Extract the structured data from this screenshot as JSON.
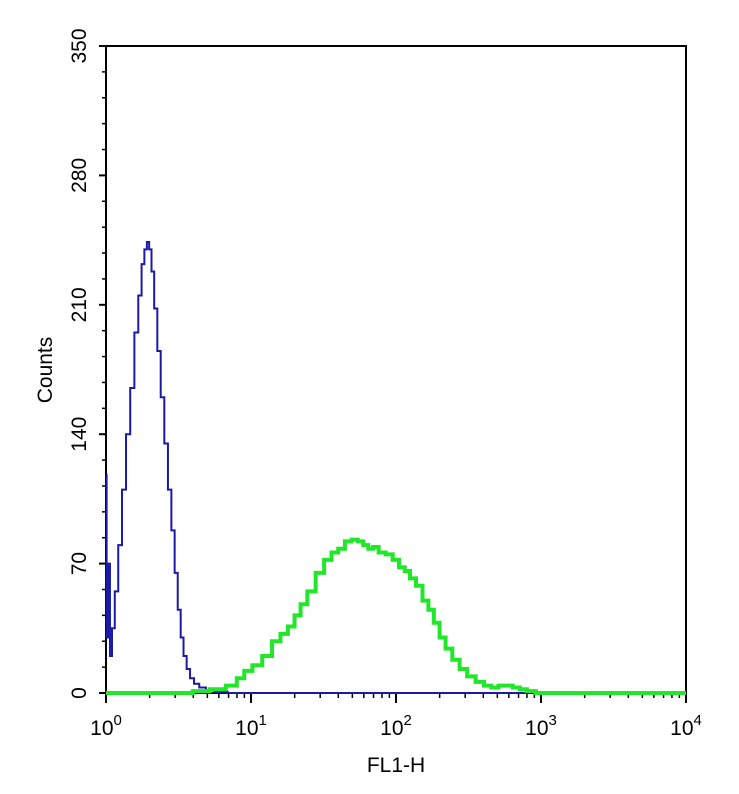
{
  "chart_data": {
    "type": "line",
    "title": "",
    "xlabel": "FL1-H",
    "ylabel": "Counts",
    "x_scale": "log",
    "xlim": [
      1,
      10000
    ],
    "ylim": [
      0,
      350
    ],
    "grid": false,
    "legend": "none",
    "x_ticks": [
      {
        "value": 1,
        "base": "10",
        "exp": "0"
      },
      {
        "value": 10,
        "base": "10",
        "exp": "1"
      },
      {
        "value": 100,
        "base": "10",
        "exp": "2"
      },
      {
        "value": 1000,
        "base": "10",
        "exp": "3"
      },
      {
        "value": 10000,
        "base": "10",
        "exp": "4"
      }
    ],
    "y_ticks": [
      "0",
      "70",
      "140",
      "210",
      "280",
      "350"
    ],
    "series": [
      {
        "color": "#1a1aa6",
        "points": [
          [
            1.0,
            118
          ],
          [
            1.02,
            30
          ],
          [
            1.05,
            70
          ],
          [
            1.08,
            20
          ],
          [
            1.12,
            35
          ],
          [
            1.18,
            55
          ],
          [
            1.25,
            80
          ],
          [
            1.33,
            110
          ],
          [
            1.42,
            140
          ],
          [
            1.52,
            165
          ],
          [
            1.62,
            195
          ],
          [
            1.72,
            215
          ],
          [
            1.8,
            232
          ],
          [
            1.88,
            240
          ],
          [
            1.95,
            244
          ],
          [
            2.02,
            240
          ],
          [
            2.1,
            228
          ],
          [
            2.2,
            208
          ],
          [
            2.32,
            185
          ],
          [
            2.45,
            160
          ],
          [
            2.6,
            135
          ],
          [
            2.75,
            110
          ],
          [
            2.9,
            88
          ],
          [
            3.05,
            65
          ],
          [
            3.2,
            45
          ],
          [
            3.35,
            30
          ],
          [
            3.5,
            20
          ],
          [
            3.7,
            13
          ],
          [
            3.9,
            8
          ],
          [
            4.2,
            5
          ],
          [
            4.6,
            3
          ],
          [
            5.2,
            1.5
          ],
          [
            6.0,
            0.5
          ],
          [
            8.0,
            0
          ],
          [
            20,
            0
          ],
          [
            100,
            0
          ],
          [
            300,
            0
          ],
          [
            600,
            0
          ],
          [
            800,
            0
          ]
        ]
      },
      {
        "color": "#22e62a",
        "points": [
          [
            1.0,
            0
          ],
          [
            3.5,
            0
          ],
          [
            4.5,
            1
          ],
          [
            6.0,
            2
          ],
          [
            7.5,
            4
          ],
          [
            8.5,
            8
          ],
          [
            9.5,
            12
          ],
          [
            11,
            15
          ],
          [
            13,
            20
          ],
          [
            15,
            28
          ],
          [
            17,
            32
          ],
          [
            19,
            36
          ],
          [
            21,
            42
          ],
          [
            23,
            48
          ],
          [
            26,
            55
          ],
          [
            30,
            65
          ],
          [
            34,
            72
          ],
          [
            38,
            76
          ],
          [
            42,
            78
          ],
          [
            47,
            82
          ],
          [
            52,
            83
          ],
          [
            57,
            82
          ],
          [
            62,
            80
          ],
          [
            67,
            78
          ],
          [
            72,
            79
          ],
          [
            80,
            76
          ],
          [
            90,
            75
          ],
          [
            100,
            72
          ],
          [
            110,
            68
          ],
          [
            120,
            66
          ],
          [
            130,
            62
          ],
          [
            145,
            58
          ],
          [
            160,
            50
          ],
          [
            175,
            45
          ],
          [
            190,
            38
          ],
          [
            210,
            30
          ],
          [
            230,
            24
          ],
          [
            260,
            18
          ],
          [
            290,
            13
          ],
          [
            330,
            9
          ],
          [
            380,
            6
          ],
          [
            430,
            4
          ],
          [
            480,
            3
          ],
          [
            540,
            4
          ],
          [
            600,
            4
          ],
          [
            680,
            3
          ],
          [
            750,
            2
          ],
          [
            850,
            1
          ],
          [
            1000,
            0
          ],
          [
            3000,
            0
          ],
          [
            10000,
            0
          ]
        ]
      }
    ]
  }
}
